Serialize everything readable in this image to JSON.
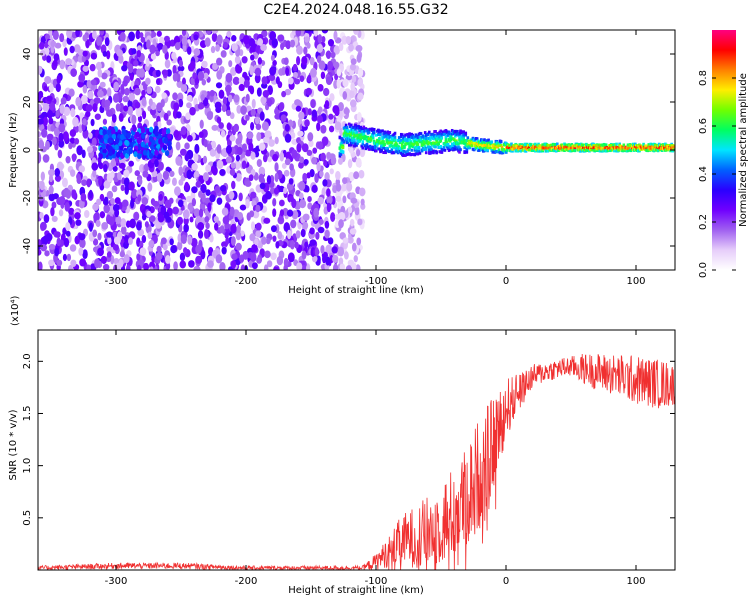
{
  "title": "C2E4.2024.048.16.55.G32",
  "colors": {
    "line": "#f03030",
    "axis": "#000000",
    "background": "#ffffff"
  },
  "chart_data": [
    {
      "type": "heatmap",
      "xlabel": "Height of straight line (km)",
      "ylabel": "Frequency (Hz)",
      "xlim": [
        -360,
        130
      ],
      "ylim": [
        -50,
        50
      ],
      "x_ticks": [
        -300,
        -200,
        -100,
        0,
        100
      ],
      "y_ticks": [
        -40,
        -20,
        0,
        20,
        40
      ],
      "colorbar": {
        "label": "Normalized spectral amplitude",
        "range": [
          0.0,
          1.0
        ],
        "ticks": [
          "0.0",
          "0.2",
          "0.4",
          "0.6",
          "0.8"
        ],
        "colormap": [
          "#ffffff",
          "#e6cdfa",
          "#a060f0",
          "#7000ff",
          "#2a00ff",
          "#0060ff",
          "#00e5ff",
          "#00ff60",
          "#70ff00",
          "#ffee00",
          "#ff8000",
          "#ff0000",
          "#ff0080"
        ]
      },
      "description_of_structure": {
        "noise_floor_until_km": -120,
        "burst_center": [
          -285,
          3
        ],
        "signal_track": [
          [
            -125,
            7
          ],
          [
            -100,
            4
          ],
          [
            -80,
            2
          ],
          [
            -60,
            3
          ],
          [
            -40,
            4
          ],
          [
            -20,
            2
          ],
          [
            0,
            1
          ],
          [
            50,
            1
          ],
          [
            130,
            1
          ]
        ]
      }
    },
    {
      "type": "line",
      "xlabel": "Height of straight line (km)",
      "ylabel": "SNR (10 * v/v)",
      "y_multiplier": "(x10⁴)",
      "xlim": [
        -360,
        130
      ],
      "ylim": [
        0,
        2.3
      ],
      "x_ticks": [
        -300,
        -200,
        -100,
        0,
        100
      ],
      "y_ticks": [
        "0.5",
        "1.0",
        "1.5",
        "2.0"
      ],
      "series": [
        {
          "x": [
            -360,
            -300,
            -250,
            -200,
            -150,
            -110,
            -100,
            -90,
            -80,
            -70,
            -60,
            -50,
            -40,
            -30,
            -20,
            -10,
            0,
            10,
            20,
            30,
            40,
            50,
            60,
            70,
            80,
            90,
            100,
            110,
            120,
            130
          ],
          "y": [
            0.02,
            0.04,
            0.04,
            0.02,
            0.02,
            0.02,
            0.08,
            0.18,
            0.28,
            0.32,
            0.36,
            0.45,
            0.55,
            0.7,
            0.95,
            1.2,
            1.55,
            1.7,
            1.85,
            1.9,
            1.93,
            1.95,
            1.93,
            1.9,
            1.88,
            1.85,
            1.82,
            1.8,
            1.78,
            1.78
          ],
          "noise_amplitude": [
            0.02,
            0.03,
            0.03,
            0.02,
            0.02,
            0.02,
            0.08,
            0.15,
            0.25,
            0.3,
            0.35,
            0.4,
            0.45,
            0.5,
            0.55,
            0.45,
            0.3,
            0.18,
            0.12,
            0.1,
            0.1,
            0.1,
            0.15,
            0.18,
            0.2,
            0.22,
            0.24,
            0.24,
            0.24,
            0.2
          ]
        }
      ]
    }
  ]
}
